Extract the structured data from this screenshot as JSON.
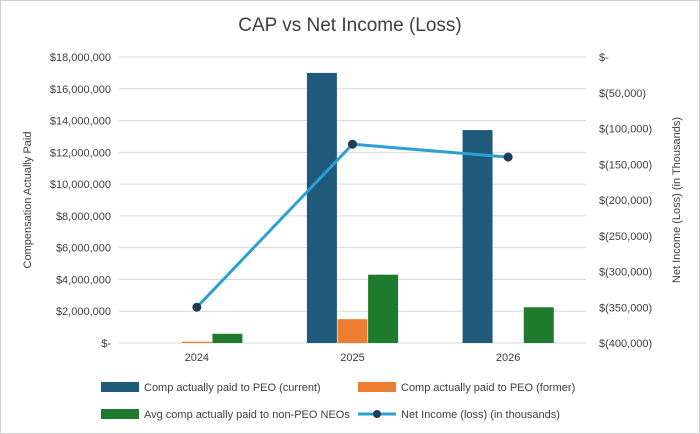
{
  "chart_data": {
    "type": "bar",
    "title": "CAP vs Net Income (Loss)",
    "categories": [
      "2024",
      "2025",
      "2026"
    ],
    "ylabel": "Compensation Actually Paid",
    "y2label": "Net Income (Loss) (in Thousands)",
    "ylim": [
      0,
      18000000
    ],
    "y2lim": [
      -400000,
      0
    ],
    "y_ticks": [
      {
        "value": 0,
        "label": "$-"
      },
      {
        "value": 2000000,
        "label": "$2,000,000"
      },
      {
        "value": 4000000,
        "label": "$4,000,000"
      },
      {
        "value": 6000000,
        "label": "$6,000,000"
      },
      {
        "value": 8000000,
        "label": "$8,000,000"
      },
      {
        "value": 10000000,
        "label": "$10,000,000"
      },
      {
        "value": 12000000,
        "label": "$12,000,000"
      },
      {
        "value": 14000000,
        "label": "$14,000,000"
      },
      {
        "value": 16000000,
        "label": "$16,000,000"
      },
      {
        "value": 18000000,
        "label": "$18,000,000"
      }
    ],
    "y2_ticks": [
      {
        "value": 0,
        "label": "$-"
      },
      {
        "value": -50000,
        "label": "$(50,000)"
      },
      {
        "value": -100000,
        "label": "$(100,000)"
      },
      {
        "value": -150000,
        "label": "$(150,000)"
      },
      {
        "value": -200000,
        "label": "$(200,000)"
      },
      {
        "value": -250000,
        "label": "$(250,000)"
      },
      {
        "value": -300000,
        "label": "$(300,000)"
      },
      {
        "value": -350000,
        "label": "$(350,000)"
      },
      {
        "value": -400000,
        "label": "$(400,000)"
      }
    ],
    "grid": true,
    "legend_position": "bottom",
    "series": [
      {
        "name": "Comp actually paid to PEO (current)",
        "kind": "bar",
        "axis": "left",
        "color": "#1f5a7a",
        "values": [
          0,
          17000000,
          13400000
        ]
      },
      {
        "name": "Comp actually paid to PEO (former)",
        "kind": "bar",
        "axis": "left",
        "color": "#ed7d31",
        "values": [
          80000,
          1500000,
          0
        ]
      },
      {
        "name": "Avg comp actually paid to non-PEO NEOs",
        "kind": "bar",
        "axis": "left",
        "color": "#1e7b2e",
        "values": [
          580000,
          4300000,
          2250000
        ]
      },
      {
        "name": "Net Income (loss) (in thousands)",
        "kind": "line",
        "axis": "right",
        "color": "#2aa0d4",
        "values": [
          -350000,
          -122000,
          -140000
        ]
      }
    ]
  }
}
